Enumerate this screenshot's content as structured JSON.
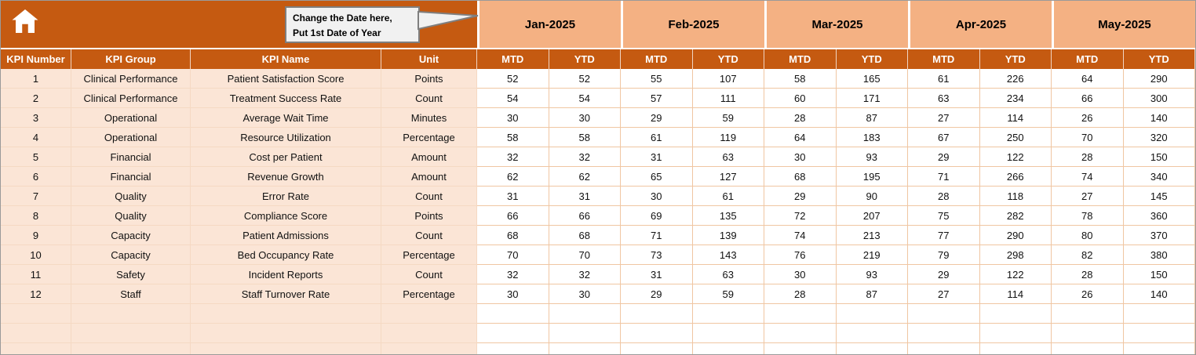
{
  "callout": {
    "line1": "Change the Date here,",
    "line2": "Put 1st Date of Year"
  },
  "months": [
    "Jan-2025",
    "Feb-2025",
    "Mar-2025",
    "Apr-2025",
    "May-2025"
  ],
  "subheaders": [
    "MTD",
    "YTD"
  ],
  "columns": [
    "KPI Number",
    "KPI Group",
    "KPI Name",
    "Unit"
  ],
  "rows": [
    {
      "number": "1",
      "group": "Clinical Performance",
      "name": "Patient Satisfaction Score",
      "unit": "Points",
      "values": [
        52,
        52,
        55,
        107,
        58,
        165,
        61,
        226,
        64,
        290
      ]
    },
    {
      "number": "2",
      "group": "Clinical Performance",
      "name": "Treatment Success Rate",
      "unit": "Count",
      "values": [
        54,
        54,
        57,
        111,
        60,
        171,
        63,
        234,
        66,
        300
      ]
    },
    {
      "number": "3",
      "group": "Operational",
      "name": "Average Wait Time",
      "unit": "Minutes",
      "values": [
        30,
        30,
        29,
        59,
        28,
        87,
        27,
        114,
        26,
        140
      ]
    },
    {
      "number": "4",
      "group": "Operational",
      "name": "Resource Utilization",
      "unit": "Percentage",
      "values": [
        58,
        58,
        61,
        119,
        64,
        183,
        67,
        250,
        70,
        320
      ]
    },
    {
      "number": "5",
      "group": "Financial",
      "name": "Cost per Patient",
      "unit": "Amount",
      "values": [
        32,
        32,
        31,
        63,
        30,
        93,
        29,
        122,
        28,
        150
      ]
    },
    {
      "number": "6",
      "group": "Financial",
      "name": "Revenue Growth",
      "unit": "Amount",
      "values": [
        62,
        62,
        65,
        127,
        68,
        195,
        71,
        266,
        74,
        340
      ]
    },
    {
      "number": "7",
      "group": "Quality",
      "name": "Error Rate",
      "unit": "Count",
      "values": [
        31,
        31,
        30,
        61,
        29,
        90,
        28,
        118,
        27,
        145
      ]
    },
    {
      "number": "8",
      "group": "Quality",
      "name": "Compliance Score",
      "unit": "Points",
      "values": [
        66,
        66,
        69,
        135,
        72,
        207,
        75,
        282,
        78,
        360
      ]
    },
    {
      "number": "9",
      "group": "Capacity",
      "name": "Patient Admissions",
      "unit": "Count",
      "values": [
        68,
        68,
        71,
        139,
        74,
        213,
        77,
        290,
        80,
        370
      ]
    },
    {
      "number": "10",
      "group": "Capacity",
      "name": "Bed Occupancy Rate",
      "unit": "Percentage",
      "values": [
        70,
        70,
        73,
        143,
        76,
        219,
        79,
        298,
        82,
        380
      ]
    },
    {
      "number": "11",
      "group": "Safety",
      "name": "Incident Reports",
      "unit": "Count",
      "values": [
        32,
        32,
        31,
        63,
        30,
        93,
        29,
        122,
        28,
        150
      ]
    },
    {
      "number": "12",
      "group": "Staff",
      "name": "Staff Turnover Rate",
      "unit": "Percentage",
      "values": [
        30,
        30,
        29,
        59,
        28,
        87,
        27,
        114,
        26,
        140
      ]
    }
  ],
  "empty_row_count": 3,
  "colors": {
    "header_dark": "#C55A11",
    "header_light": "#F4B183",
    "row_peach": "#FBE5D6",
    "grid_border": "#F0C6A2",
    "callout_bg": "#F1F1F1",
    "callout_border": "#7F7F7F"
  }
}
